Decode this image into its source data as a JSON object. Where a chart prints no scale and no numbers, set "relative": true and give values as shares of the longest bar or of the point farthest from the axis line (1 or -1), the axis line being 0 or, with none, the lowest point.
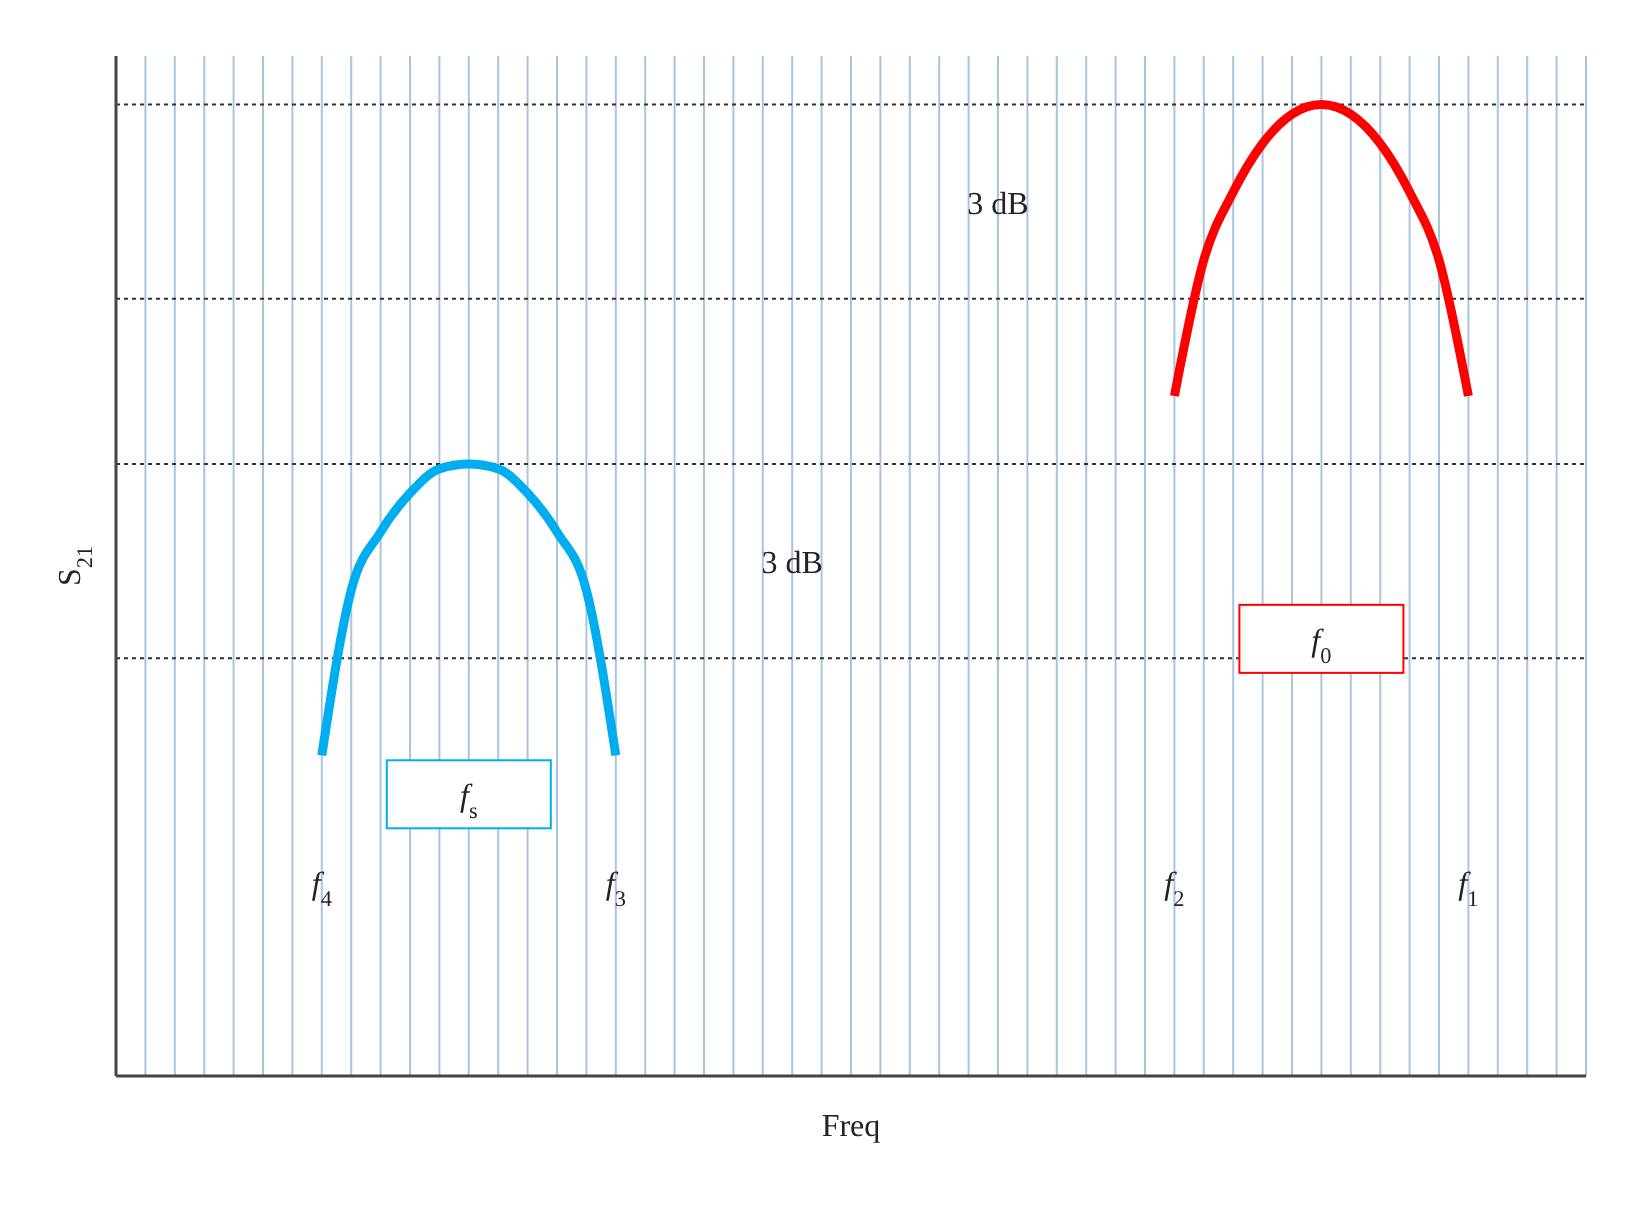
{
  "chart_data": {
    "type": "line",
    "relative": true,
    "xlabel": "Freq",
    "ylabel": "S$_{21}$",
    "categories": [
      null,
      null,
      null,
      null,
      null,
      null,
      null,
      null,
      null,
      null,
      null,
      null,
      null,
      null,
      null,
      null,
      null,
      null,
      null,
      null,
      null,
      null,
      null,
      null,
      null,
      null,
      null,
      null,
      null,
      null,
      null,
      null,
      null,
      null,
      null,
      null,
      null,
      null,
      null,
      null,
      null,
      null,
      null,
      null,
      null,
      null,
      null,
      null,
      null,
      null,
      null
    ],
    "series": [
      {
        "color": "#00aeef",
        "values": [
          null,
          null,
          null,
          null,
          null,
          null,
          null,
          0.33,
          0.5,
          0.56,
          0.6,
          0.625,
          0.63,
          0.625,
          0.6,
          0.56,
          0.5,
          0.33,
          null,
          null,
          null,
          null,
          null,
          null,
          null,
          null,
          null,
          null,
          null,
          null,
          null,
          null,
          null,
          null,
          null,
          null,
          null,
          null,
          null,
          null,
          null,
          null,
          null,
          null,
          null,
          null,
          null,
          null,
          null,
          null,
          null
        ]
      },
      {
        "color": "#ff0000",
        "values": [
          null,
          null,
          null,
          null,
          null,
          null,
          null,
          null,
          null,
          null,
          null,
          null,
          null,
          null,
          null,
          null,
          null,
          null,
          null,
          null,
          null,
          null,
          null,
          null,
          null,
          null,
          null,
          null,
          null,
          null,
          null,
          null,
          null,
          null,
          null,
          null,
          0.7,
          0.84,
          0.91,
          0.96,
          0.99,
          1,
          0.99,
          0.96,
          0.91,
          0.84,
          0.7,
          null,
          null,
          null,
          null
        ]
      }
    ],
    "ref_lines": [
      {
        "axis": "y",
        "value": 0.63,
        "line_style": "dotted"
      },
      {
        "axis": "y",
        "value": 0.43,
        "line_style": "dotted"
      },
      {
        "axis": "y",
        "value": 1,
        "line_style": "dotted"
      },
      {
        "axis": "y",
        "value": 0.8,
        "line_style": "dotted"
      }
    ],
    "annotations": [
      "f$_{4}$",
      "f$_{s}$",
      "f$_{3}$",
      "3 dB",
      "f$_{2}$",
      "f$_{0}$",
      "f$_{1}$",
      "3 dB"
    ],
    "grid": "x",
    "marker": "none",
    "line_style": "solid"
  }
}
